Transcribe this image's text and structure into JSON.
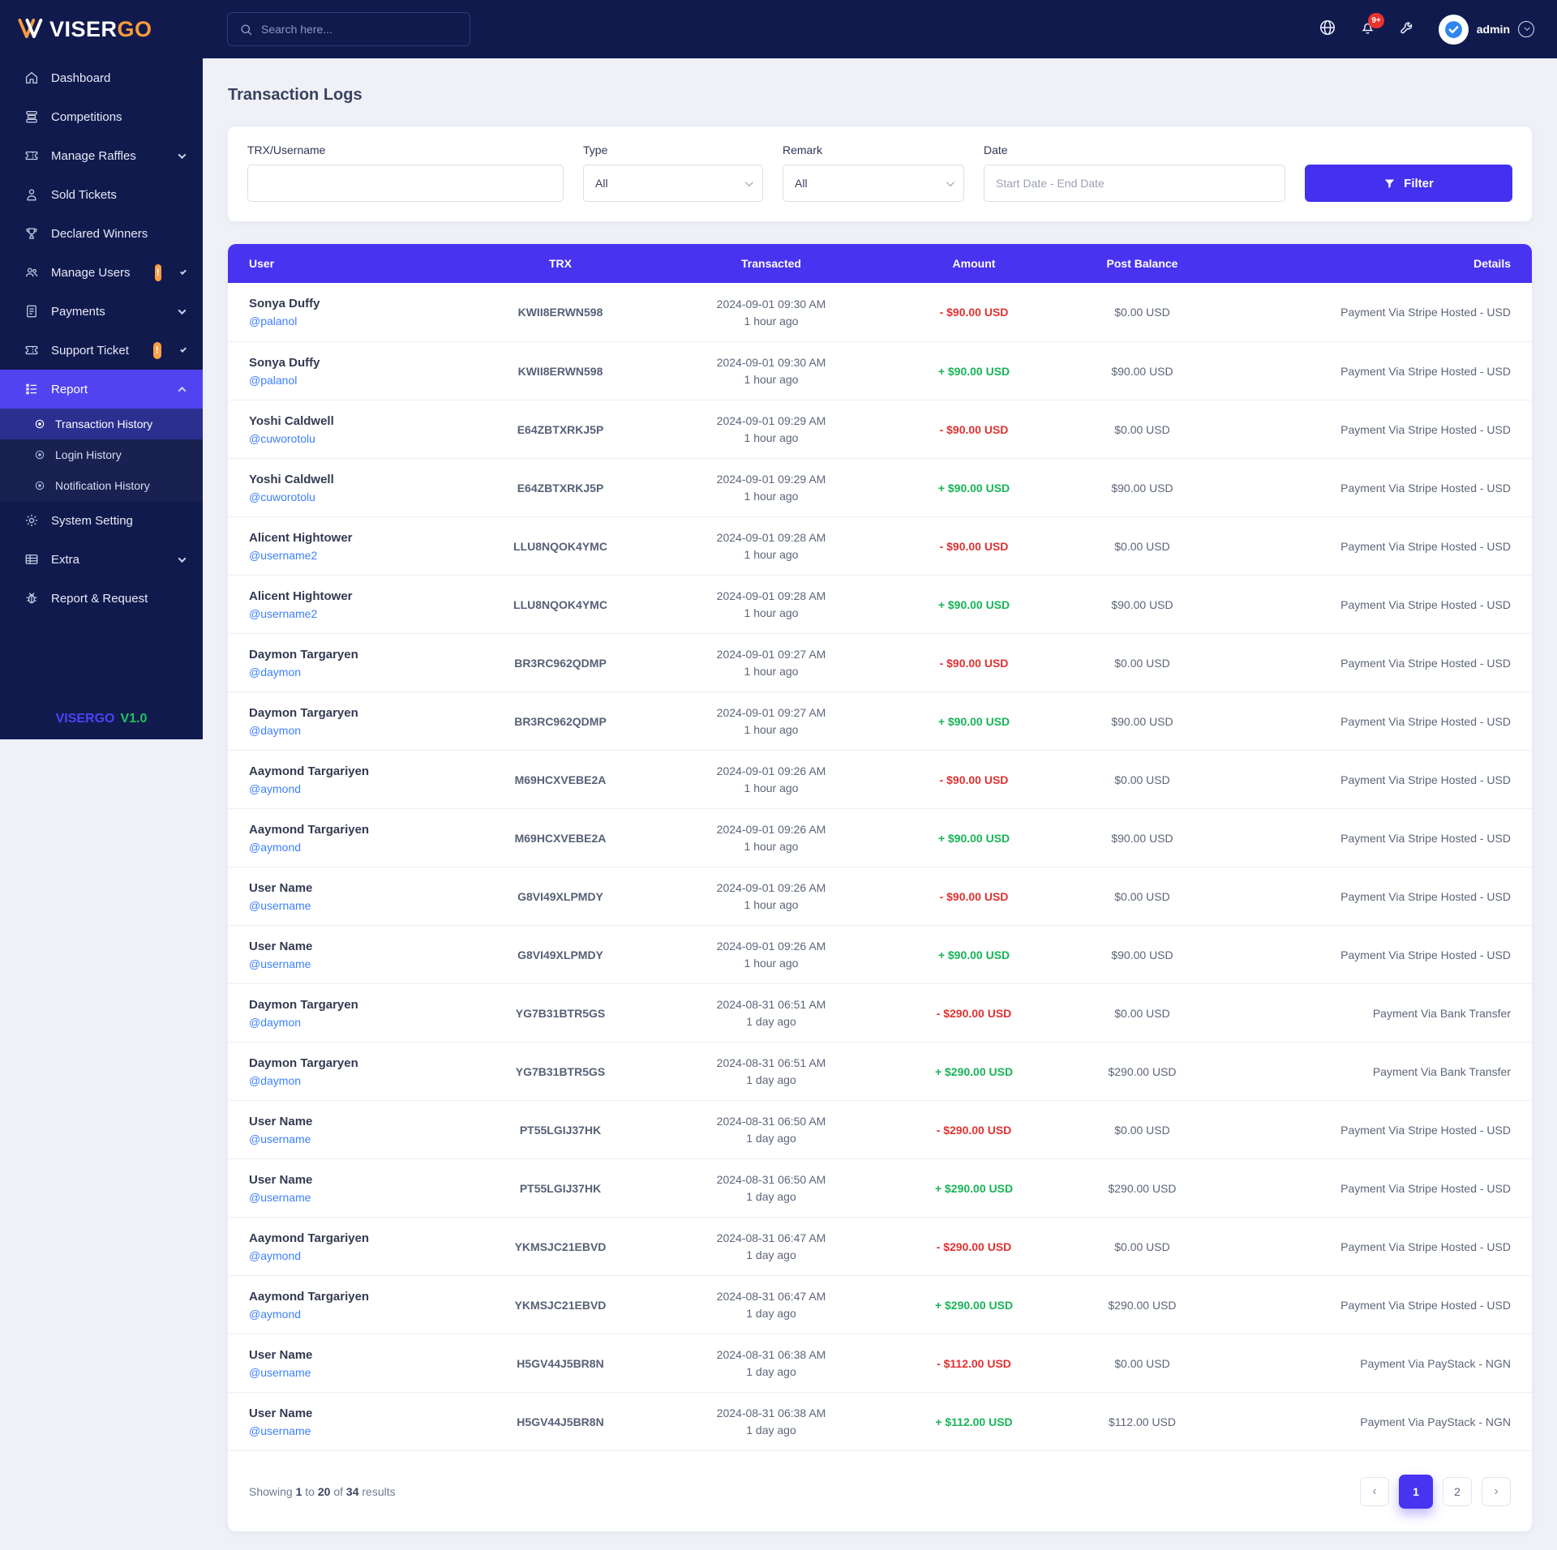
{
  "brand": {
    "name_primary": "VISER",
    "name_secondary": "GO",
    "footer_brand": "VISERGO",
    "footer_version": "V1.0"
  },
  "colors": {
    "navy": "#111A4D",
    "accent_indigo": "#4733F0",
    "debit_red": "#E03131",
    "credit_green": "#17B457",
    "badge_orange": "#F9A048",
    "link_blue": "#3D7FFE"
  },
  "topbar": {
    "search_placeholder": "Search here...",
    "notification_count": "9+",
    "user": "admin"
  },
  "sidebar": {
    "items": [
      {
        "label": "Dashboard",
        "icon": "home-icon"
      },
      {
        "label": "Competitions",
        "icon": "layers-icon"
      },
      {
        "label": "Manage Raffles",
        "icon": "ticket-icon",
        "chevron": "down"
      },
      {
        "label": "Sold Tickets",
        "icon": "person-icon"
      },
      {
        "label": "Declared Winners",
        "icon": "trophy-icon"
      },
      {
        "label": "Manage Users",
        "icon": "users-icon",
        "badge": "!",
        "chevron": "down"
      },
      {
        "label": "Payments",
        "icon": "invoice-icon",
        "chevron": "down"
      },
      {
        "label": "Support Ticket",
        "icon": "ticket-icon",
        "badge": "!",
        "chevron": "down"
      },
      {
        "label": "Report",
        "icon": "report-icon",
        "chevron": "up",
        "active": true,
        "children": [
          {
            "label": "Transaction History",
            "active": true
          },
          {
            "label": "Login History"
          },
          {
            "label": "Notification History"
          }
        ]
      },
      {
        "label": "System Setting",
        "icon": "gear-icon"
      },
      {
        "label": "Extra",
        "icon": "table-icon",
        "chevron": "down"
      },
      {
        "label": "Report & Request",
        "icon": "bug-icon"
      }
    ]
  },
  "page": {
    "title": "Transaction Logs"
  },
  "filters": {
    "trx_label": "TRX/Username",
    "trx_value": "",
    "type_label": "Type",
    "type_value": "All",
    "remark_label": "Remark",
    "remark_value": "All",
    "date_label": "Date",
    "date_placeholder": "Start Date - End Date",
    "button_label": "Filter"
  },
  "table": {
    "columns": [
      "User",
      "TRX",
      "Transacted",
      "Amount",
      "Post Balance",
      "Details"
    ],
    "rows": [
      {
        "name": "Sonya Duffy",
        "handle": "@palanol",
        "trx": "KWII8ERWN598",
        "date": "2024-09-01 09:30 AM",
        "ago": "1 hour ago",
        "amount": "- $90.00 USD",
        "amount_type": "debit",
        "balance": "$0.00 USD",
        "details": "Payment Via Stripe Hosted - USD"
      },
      {
        "name": "Sonya Duffy",
        "handle": "@palanol",
        "trx": "KWII8ERWN598",
        "date": "2024-09-01 09:30 AM",
        "ago": "1 hour ago",
        "amount": "+ $90.00 USD",
        "amount_type": "credit",
        "balance": "$90.00 USD",
        "details": "Payment Via Stripe Hosted - USD"
      },
      {
        "name": "Yoshi Caldwell",
        "handle": "@cuworotolu",
        "trx": "E64ZBTXRKJ5P",
        "date": "2024-09-01 09:29 AM",
        "ago": "1 hour ago",
        "amount": "- $90.00 USD",
        "amount_type": "debit",
        "balance": "$0.00 USD",
        "details": "Payment Via Stripe Hosted - USD"
      },
      {
        "name": "Yoshi Caldwell",
        "handle": "@cuworotolu",
        "trx": "E64ZBTXRKJ5P",
        "date": "2024-09-01 09:29 AM",
        "ago": "1 hour ago",
        "amount": "+ $90.00 USD",
        "amount_type": "credit",
        "balance": "$90.00 USD",
        "details": "Payment Via Stripe Hosted - USD"
      },
      {
        "name": "Alicent Hightower",
        "handle": "@username2",
        "trx": "LLU8NQOK4YMC",
        "date": "2024-09-01 09:28 AM",
        "ago": "1 hour ago",
        "amount": "- $90.00 USD",
        "amount_type": "debit",
        "balance": "$0.00 USD",
        "details": "Payment Via Stripe Hosted - USD"
      },
      {
        "name": "Alicent Hightower",
        "handle": "@username2",
        "trx": "LLU8NQOK4YMC",
        "date": "2024-09-01 09:28 AM",
        "ago": "1 hour ago",
        "amount": "+ $90.00 USD",
        "amount_type": "credit",
        "balance": "$90.00 USD",
        "details": "Payment Via Stripe Hosted - USD"
      },
      {
        "name": "Daymon Targaryen",
        "handle": "@daymon",
        "trx": "BR3RC962QDMP",
        "date": "2024-09-01 09:27 AM",
        "ago": "1 hour ago",
        "amount": "- $90.00 USD",
        "amount_type": "debit",
        "balance": "$0.00 USD",
        "details": "Payment Via Stripe Hosted - USD"
      },
      {
        "name": "Daymon Targaryen",
        "handle": "@daymon",
        "trx": "BR3RC962QDMP",
        "date": "2024-09-01 09:27 AM",
        "ago": "1 hour ago",
        "amount": "+ $90.00 USD",
        "amount_type": "credit",
        "balance": "$90.00 USD",
        "details": "Payment Via Stripe Hosted - USD"
      },
      {
        "name": "Aaymond Targariyen",
        "handle": "@aymond",
        "trx": "M69HCXVEBE2A",
        "date": "2024-09-01 09:26 AM",
        "ago": "1 hour ago",
        "amount": "- $90.00 USD",
        "amount_type": "debit",
        "balance": "$0.00 USD",
        "details": "Payment Via Stripe Hosted - USD"
      },
      {
        "name": "Aaymond Targariyen",
        "handle": "@aymond",
        "trx": "M69HCXVEBE2A",
        "date": "2024-09-01 09:26 AM",
        "ago": "1 hour ago",
        "amount": "+ $90.00 USD",
        "amount_type": "credit",
        "balance": "$90.00 USD",
        "details": "Payment Via Stripe Hosted - USD"
      },
      {
        "name": "User Name",
        "handle": "@username",
        "trx": "G8VI49XLPMDY",
        "date": "2024-09-01 09:26 AM",
        "ago": "1 hour ago",
        "amount": "- $90.00 USD",
        "amount_type": "debit",
        "balance": "$0.00 USD",
        "details": "Payment Via Stripe Hosted - USD"
      },
      {
        "name": "User Name",
        "handle": "@username",
        "trx": "G8VI49XLPMDY",
        "date": "2024-09-01 09:26 AM",
        "ago": "1 hour ago",
        "amount": "+ $90.00 USD",
        "amount_type": "credit",
        "balance": "$90.00 USD",
        "details": "Payment Via Stripe Hosted - USD"
      },
      {
        "name": "Daymon Targaryen",
        "handle": "@daymon",
        "trx": "YG7B31BTR5GS",
        "date": "2024-08-31 06:51 AM",
        "ago": "1 day ago",
        "amount": "- $290.00 USD",
        "amount_type": "debit",
        "balance": "$0.00 USD",
        "details": "Payment Via Bank Transfer"
      },
      {
        "name": "Daymon Targaryen",
        "handle": "@daymon",
        "trx": "YG7B31BTR5GS",
        "date": "2024-08-31 06:51 AM",
        "ago": "1 day ago",
        "amount": "+ $290.00 USD",
        "amount_type": "credit",
        "balance": "$290.00 USD",
        "details": "Payment Via Bank Transfer"
      },
      {
        "name": "User Name",
        "handle": "@username",
        "trx": "PT55LGIJ37HK",
        "date": "2024-08-31 06:50 AM",
        "ago": "1 day ago",
        "amount": "- $290.00 USD",
        "amount_type": "debit",
        "balance": "$0.00 USD",
        "details": "Payment Via Stripe Hosted - USD"
      },
      {
        "name": "User Name",
        "handle": "@username",
        "trx": "PT55LGIJ37HK",
        "date": "2024-08-31 06:50 AM",
        "ago": "1 day ago",
        "amount": "+ $290.00 USD",
        "amount_type": "credit",
        "balance": "$290.00 USD",
        "details": "Payment Via Stripe Hosted - USD"
      },
      {
        "name": "Aaymond Targariyen",
        "handle": "@aymond",
        "trx": "YKMSJC21EBVD",
        "date": "2024-08-31 06:47 AM",
        "ago": "1 day ago",
        "amount": "- $290.00 USD",
        "amount_type": "debit",
        "balance": "$0.00 USD",
        "details": "Payment Via Stripe Hosted - USD"
      },
      {
        "name": "Aaymond Targariyen",
        "handle": "@aymond",
        "trx": "YKMSJC21EBVD",
        "date": "2024-08-31 06:47 AM",
        "ago": "1 day ago",
        "amount": "+ $290.00 USD",
        "amount_type": "credit",
        "balance": "$290.00 USD",
        "details": "Payment Via Stripe Hosted - USD"
      },
      {
        "name": "User Name",
        "handle": "@username",
        "trx": "H5GV44J5BR8N",
        "date": "2024-08-31 06:38 AM",
        "ago": "1 day ago",
        "amount": "- $112.00 USD",
        "amount_type": "debit",
        "balance": "$0.00 USD",
        "details": "Payment Via PayStack - NGN"
      },
      {
        "name": "User Name",
        "handle": "@username",
        "trx": "H5GV44J5BR8N",
        "date": "2024-08-31 06:38 AM",
        "ago": "1 day ago",
        "amount": "+ $112.00 USD",
        "amount_type": "credit",
        "balance": "$112.00 USD",
        "details": "Payment Via PayStack - NGN"
      }
    ]
  },
  "pagination": {
    "showing_prefix": "Showing",
    "from": "1",
    "to_word": "to",
    "to": "20",
    "of_word": "of",
    "total": "34",
    "suffix": "results",
    "pages": [
      {
        "label": "‹",
        "kind": "prev"
      },
      {
        "label": "1",
        "active": true
      },
      {
        "label": "2"
      },
      {
        "label": "›",
        "kind": "next"
      }
    ]
  }
}
